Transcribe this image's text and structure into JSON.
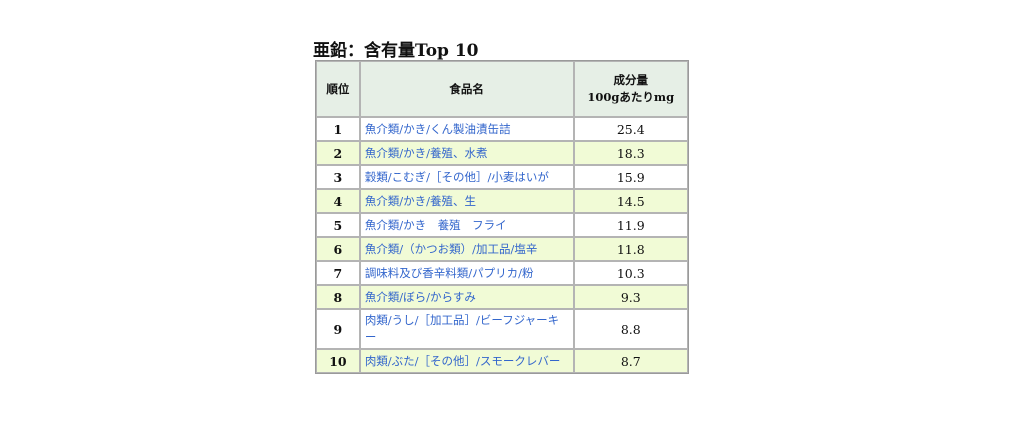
{
  "title": "亜鉛：含有量Top 10",
  "table": {
    "headers": {
      "rank": "順位",
      "name": "食品名",
      "amount_line1": "成分量",
      "amount_line2": "100gあたりmg"
    },
    "rows": [
      {
        "rank": "1",
        "name": "魚介類/かき/くん製油漬缶詰",
        "amount": "25.4"
      },
      {
        "rank": "2",
        "name": "魚介類/かき/養殖、水煮",
        "amount": "18.3"
      },
      {
        "rank": "3",
        "name": "穀類/こむぎ/［その他］/小麦はいが",
        "amount": "15.9"
      },
      {
        "rank": "4",
        "name": "魚介類/かき/養殖、生",
        "amount": "14.5"
      },
      {
        "rank": "5",
        "name": "魚介類/かき　養殖　フライ",
        "amount": "11.9"
      },
      {
        "rank": "6",
        "name": "魚介類/（かつお類）/加工品/塩辛",
        "amount": "11.8"
      },
      {
        "rank": "7",
        "name": "調味料及び香辛料類/パプリカ/粉",
        "amount": "10.3"
      },
      {
        "rank": "8",
        "name": "魚介類/ぼら/からすみ",
        "amount": "9.3"
      },
      {
        "rank": "9",
        "name": "肉類/うし/［加工品］/ビーフジャーキー",
        "amount": "8.8"
      },
      {
        "rank": "10",
        "name": "肉類/ぶた/［その他］/スモークレバー",
        "amount": "8.7"
      }
    ]
  }
}
